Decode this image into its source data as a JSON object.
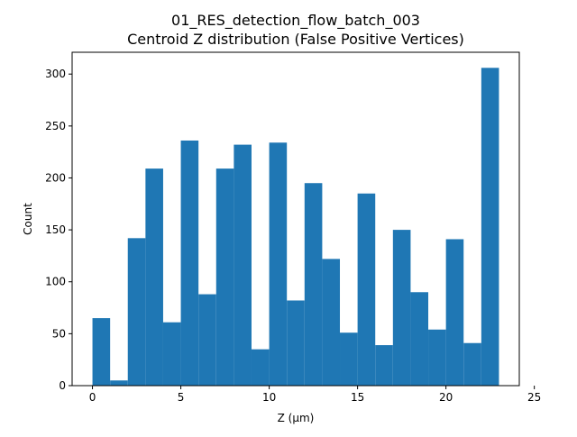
{
  "chart_data": {
    "type": "bar",
    "title": "01_RES_detection_flow_batch_003",
    "subtitle": "Centroid Z distribution (False Positive Vertices)",
    "xlabel": "Z (µm)",
    "ylabel": "Count",
    "xlim": [
      -1.15,
      24.15
    ],
    "ylim": [
      0,
      321
    ],
    "xticks": [
      0,
      5,
      10,
      15,
      20,
      25
    ],
    "yticks": [
      0,
      50,
      100,
      150,
      200,
      250,
      300
    ],
    "bin_edges": [
      0,
      1,
      2,
      3,
      4,
      5,
      6,
      7,
      8,
      9,
      10,
      11,
      12,
      13,
      14,
      15,
      16,
      17,
      18,
      19,
      20,
      21,
      22,
      23
    ],
    "counts": [
      65,
      5,
      142,
      209,
      61,
      236,
      88,
      209,
      232,
      35,
      234,
      82,
      195,
      122,
      51,
      185,
      39,
      150,
      90,
      54,
      141,
      41,
      306
    ],
    "bar_color": "#1f77b4",
    "grid": false,
    "legend": "none"
  }
}
